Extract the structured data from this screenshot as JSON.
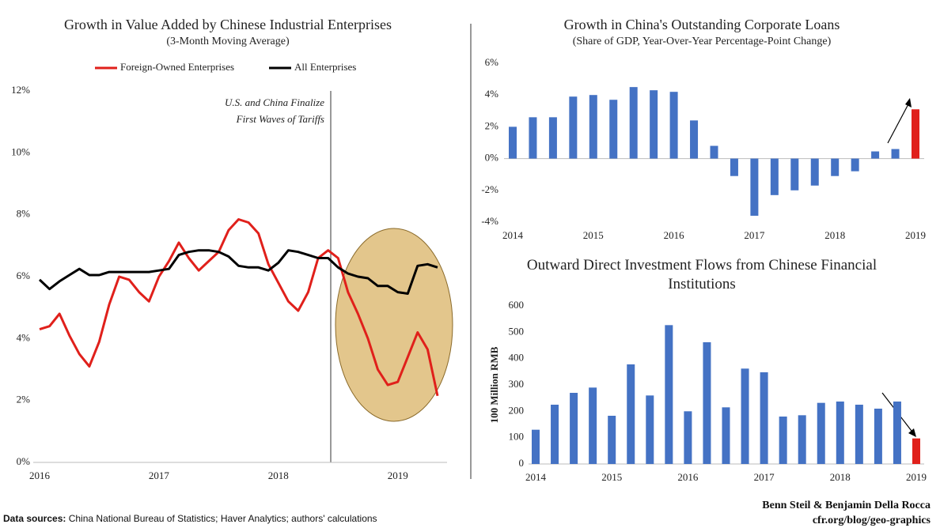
{
  "chart_data": [
    {
      "type": "line",
      "title": "Growth in Value Added by Chinese Industrial Enterprises",
      "subtitle": "(3-Month Moving Average)",
      "categories": [
        "2016",
        null,
        null,
        null,
        null,
        null,
        null,
        null,
        null,
        null,
        null,
        null,
        "2017",
        null,
        null,
        null,
        null,
        null,
        null,
        null,
        null,
        null,
        null,
        null,
        "2018",
        null,
        null,
        null,
        null,
        null,
        null,
        null,
        null,
        null,
        null,
        null,
        "2019",
        null,
        null,
        null,
        null
      ],
      "series": [
        {
          "name": "Foreign-Owned Enterprises",
          "color": "#e0201b",
          "values": [
            4.3,
            4.4,
            4.8,
            4.1,
            3.5,
            3.1,
            3.9,
            5.1,
            6.0,
            5.9,
            5.5,
            5.2,
            6.0,
            6.5,
            7.1,
            6.6,
            6.2,
            6.5,
            6.8,
            7.5,
            7.85,
            7.75,
            7.4,
            6.4,
            5.8,
            5.2,
            4.9,
            5.5,
            6.6,
            6.85,
            6.6,
            5.5,
            4.8,
            4.0,
            3.0,
            2.5,
            2.6,
            3.4,
            4.2,
            3.65,
            2.15
          ]
        },
        {
          "name": "All Enterprises",
          "color": "#000000",
          "values": [
            5.9,
            5.6,
            5.85,
            6.05,
            6.25,
            6.05,
            6.05,
            6.15,
            6.15,
            6.15,
            6.15,
            6.15,
            6.2,
            6.25,
            6.7,
            6.8,
            6.85,
            6.85,
            6.8,
            6.65,
            6.35,
            6.3,
            6.3,
            6.2,
            6.45,
            6.85,
            6.8,
            6.7,
            6.6,
            6.6,
            6.3,
            6.1,
            6.0,
            5.95,
            5.7,
            5.7,
            5.5,
            5.45,
            6.35,
            6.4,
            6.3
          ]
        }
      ],
      "ylim": [
        0,
        12
      ],
      "yticks": [
        {
          "value": 0,
          "label": "0%"
        },
        {
          "value": 2,
          "label": "2%"
        },
        {
          "value": 4,
          "label": "4%"
        },
        {
          "value": 6,
          "label": "6%"
        },
        {
          "value": 8,
          "label": "8%"
        },
        {
          "value": 10,
          "label": "10%"
        },
        {
          "value": 12,
          "label": "12%"
        }
      ],
      "annotation": [
        "U.S. and China Finalize",
        "First Waves of Tariffs"
      ]
    },
    {
      "type": "bar",
      "title": "Growth in China's Outstanding Corporate Loans",
      "subtitle": "(Share of GDP, Year-Over-Year Percentage-Point Change)",
      "categories": [
        "2014",
        null,
        null,
        null,
        "2015",
        null,
        null,
        null,
        "2016",
        null,
        null,
        null,
        "2017",
        null,
        null,
        null,
        "2018",
        null,
        null,
        null,
        "2019"
      ],
      "values": [
        2.0,
        2.6,
        2.6,
        3.9,
        4.0,
        3.7,
        4.5,
        4.3,
        4.2,
        2.4,
        0.8,
        -1.1,
        -3.6,
        -2.3,
        -2.0,
        -1.7,
        -1.1,
        -0.8,
        0.45,
        0.6,
        3.1
      ],
      "colors": [
        "#4472c4",
        "#4472c4",
        "#4472c4",
        "#4472c4",
        "#4472c4",
        "#4472c4",
        "#4472c4",
        "#4472c4",
        "#4472c4",
        "#4472c4",
        "#4472c4",
        "#4472c4",
        "#4472c4",
        "#4472c4",
        "#4472c4",
        "#4472c4",
        "#4472c4",
        "#4472c4",
        "#4472c4",
        "#4472c4",
        "#e0201b"
      ],
      "ylim": [
        -4,
        6
      ],
      "yticks": [
        {
          "value": -4,
          "label": "-4%"
        },
        {
          "value": -2,
          "label": "-2%"
        },
        {
          "value": 0,
          "label": "0%"
        },
        {
          "value": 2,
          "label": "2%"
        },
        {
          "value": 4,
          "label": "4%"
        },
        {
          "value": 6,
          "label": "6%"
        }
      ]
    },
    {
      "type": "bar",
      "title": "Outward Direct Investment Flows from Chinese Financial Institutions",
      "y_label": "100 Million RMB",
      "categories": [
        "2014",
        null,
        null,
        null,
        "2015",
        null,
        null,
        null,
        "2016",
        null,
        null,
        null,
        "2017",
        null,
        null,
        null,
        "2018",
        null,
        null,
        null,
        "2019"
      ],
      "values": [
        130,
        225,
        270,
        290,
        183,
        378,
        260,
        527,
        200,
        462,
        215,
        362,
        348,
        180,
        185,
        232,
        237,
        225,
        210,
        237,
        97
      ],
      "colors": [
        "#4472c4",
        "#4472c4",
        "#4472c4",
        "#4472c4",
        "#4472c4",
        "#4472c4",
        "#4472c4",
        "#4472c4",
        "#4472c4",
        "#4472c4",
        "#4472c4",
        "#4472c4",
        "#4472c4",
        "#4472c4",
        "#4472c4",
        "#4472c4",
        "#4472c4",
        "#4472c4",
        "#4472c4",
        "#4472c4",
        "#e0201b"
      ],
      "ylim": [
        0,
        600
      ],
      "yticks": [
        0,
        100,
        200,
        300,
        400,
        500,
        600
      ]
    }
  ],
  "footer": {
    "sources_label": "Data sources:",
    "sources": "China National Bureau of Statistics; Haver Analytics; authors' calculations",
    "authors": "Benn Steil & Benjamin Della Rocca",
    "site": "cfr.org/blog/geo-graphics"
  }
}
